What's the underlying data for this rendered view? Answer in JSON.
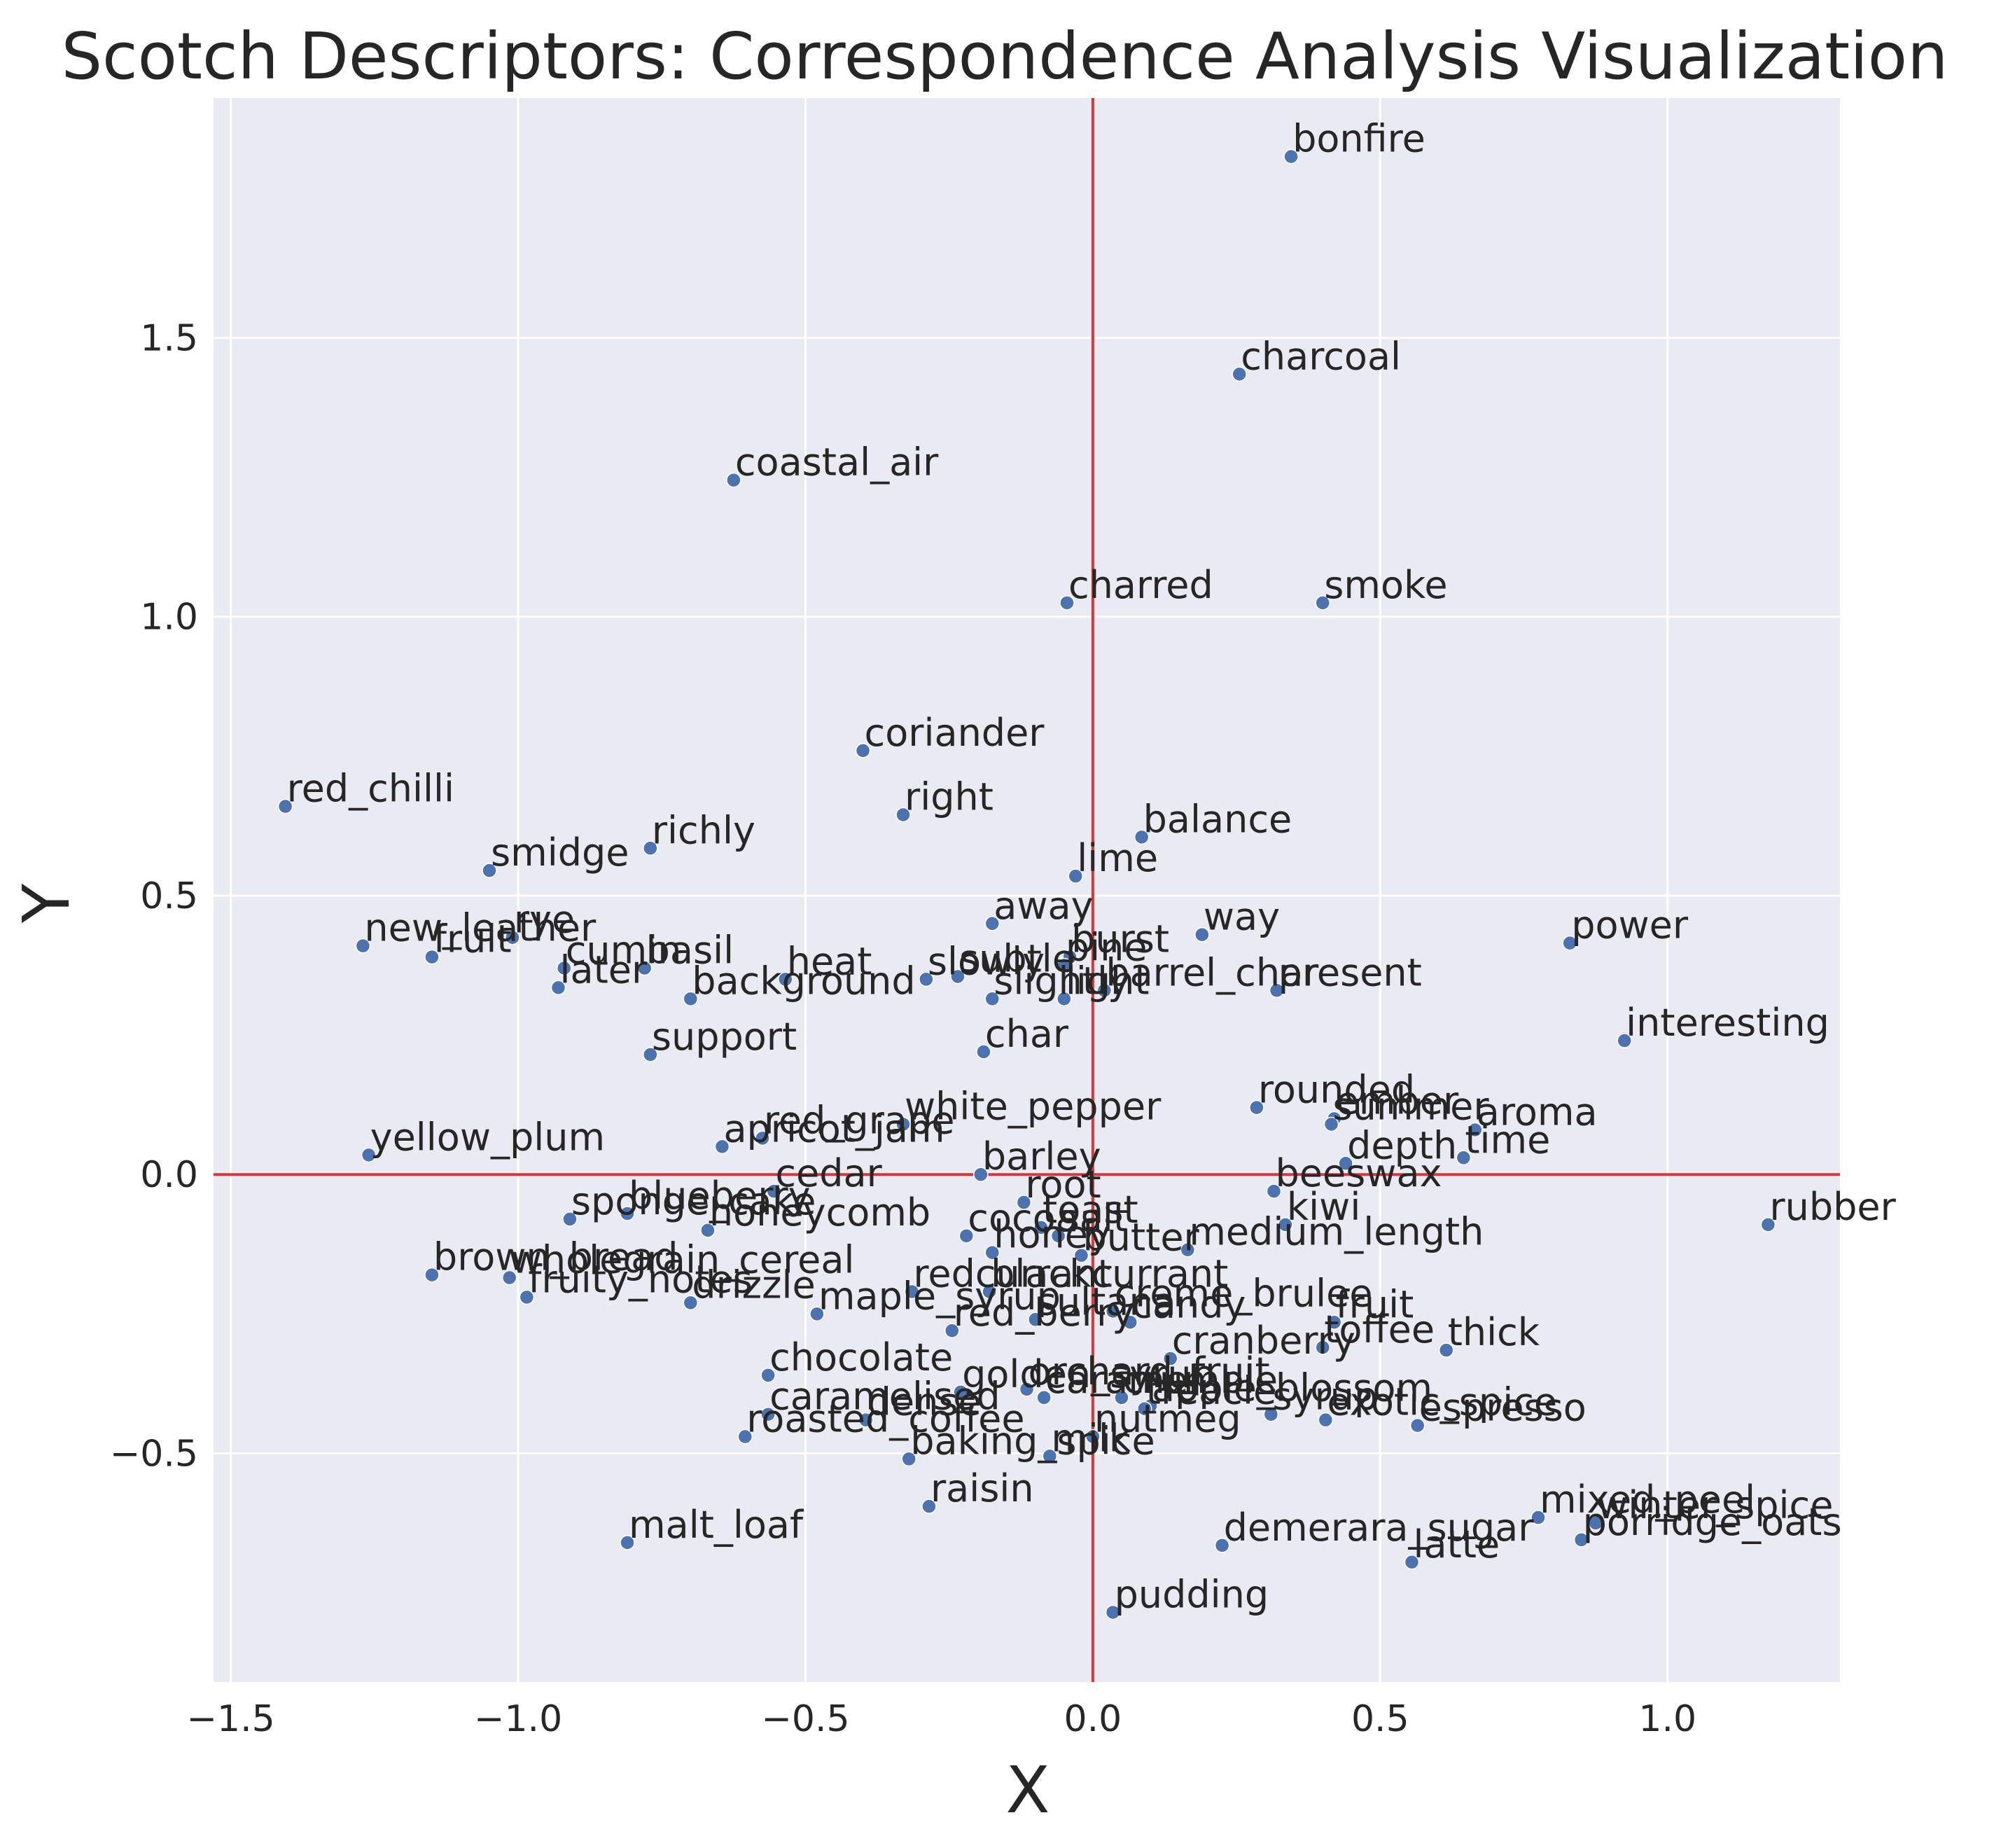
{
  "chart_data": {
    "type": "scatter",
    "title": "Scotch Descriptors: Correspondence Analysis Visualization",
    "xlabel": "X",
    "ylabel": "Y",
    "xlim": [
      -1.53,
      1.3
    ],
    "ylim": [
      -0.91,
      1.93
    ],
    "xticks": [
      -1.5,
      -1.0,
      -0.5,
      0.0,
      0.5,
      1.0
    ],
    "yticks": [
      -0.5,
      0.0,
      0.5,
      1.0,
      1.5
    ],
    "xtick_labels": [
      "−1.5",
      "−1.0",
      "−0.5",
      "0.0",
      "0.5",
      "1.0"
    ],
    "ytick_labels": [
      "−0.5",
      "0.0",
      "0.5",
      "1.0",
      "1.5"
    ],
    "grid": true,
    "reference_lines": {
      "x": 0,
      "y": 0,
      "color": "#d9383a"
    },
    "colors": {
      "background": "#eaeaf2",
      "grid": "#ffffff",
      "point": "#4c72b0",
      "reference": "#d9383a"
    },
    "points": [
      {
        "label": "bonfire",
        "x": 0.345,
        "y": 1.825
      },
      {
        "label": "charcoal",
        "x": 0.255,
        "y": 1.435
      },
      {
        "label": "coastal_air",
        "x": -0.625,
        "y": 1.245
      },
      {
        "label": "charred",
        "x": -0.045,
        "y": 1.025
      },
      {
        "label": "smoke",
        "x": 0.4,
        "y": 1.025
      },
      {
        "label": "coriander",
        "x": -0.4,
        "y": 0.76
      },
      {
        "label": "red_chilli",
        "x": -1.405,
        "y": 0.66
      },
      {
        "label": "right",
        "x": -0.33,
        "y": 0.645
      },
      {
        "label": "balance",
        "x": 0.085,
        "y": 0.605
      },
      {
        "label": "richly",
        "x": -0.77,
        "y": 0.585
      },
      {
        "label": "smidge",
        "x": -1.05,
        "y": 0.545
      },
      {
        "label": "lime",
        "x": -0.03,
        "y": 0.535
      },
      {
        "label": "away",
        "x": -0.175,
        "y": 0.45
      },
      {
        "label": "way",
        "x": 0.19,
        "y": 0.43
      },
      {
        "label": "power",
        "x": 0.83,
        "y": 0.415
      },
      {
        "label": "new_leather",
        "x": -1.27,
        "y": 0.41
      },
      {
        "label": "rye",
        "x": -1.01,
        "y": 0.425
      },
      {
        "label": "burst",
        "x": -0.04,
        "y": 0.39
      },
      {
        "label": "fruit",
        "x": -1.15,
        "y": 0.39
      },
      {
        "label": "cumin",
        "x": -0.92,
        "y": 0.37
      },
      {
        "label": "basil",
        "x": -0.78,
        "y": 0.37
      },
      {
        "label": "pine",
        "x": -0.05,
        "y": 0.375
      },
      {
        "label": "heat",
        "x": -0.535,
        "y": 0.35
      },
      {
        "label": "slowly",
        "x": -0.29,
        "y": 0.35
      },
      {
        "label": "subtle",
        "x": -0.235,
        "y": 0.355
      },
      {
        "label": "later",
        "x": -0.93,
        "y": 0.335
      },
      {
        "label": "slightly",
        "x": -0.175,
        "y": 0.315
      },
      {
        "label": "light",
        "x": -0.05,
        "y": 0.315
      },
      {
        "label": "background",
        "x": -0.7,
        "y": 0.315
      },
      {
        "label": "barrel_char",
        "x": 0.02,
        "y": 0.33
      },
      {
        "label": "present",
        "x": 0.32,
        "y": 0.33
      },
      {
        "label": "interesting",
        "x": 0.925,
        "y": 0.24
      },
      {
        "label": "support",
        "x": -0.77,
        "y": 0.215
      },
      {
        "label": "char",
        "x": -0.19,
        "y": 0.22
      },
      {
        "label": "rounded",
        "x": 0.285,
        "y": 0.12
      },
      {
        "label": "ember",
        "x": 0.42,
        "y": 0.1
      },
      {
        "label": "summer",
        "x": 0.415,
        "y": 0.09
      },
      {
        "label": "aroma",
        "x": 0.665,
        "y": 0.08
      },
      {
        "label": "time",
        "x": 0.645,
        "y": 0.03
      },
      {
        "label": "depth",
        "x": 0.44,
        "y": 0.02
      },
      {
        "label": "white_pepper",
        "x": -0.33,
        "y": 0.09
      },
      {
        "label": "red_grape",
        "x": -0.575,
        "y": 0.065
      },
      {
        "label": "apricot_jam",
        "x": -0.645,
        "y": 0.05
      },
      {
        "label": "yellow_plum",
        "x": -1.26,
        "y": 0.035
      },
      {
        "label": "barley",
        "x": -0.195,
        "y": 0.0
      },
      {
        "label": "cedar",
        "x": -0.555,
        "y": -0.03
      },
      {
        "label": "beeswax",
        "x": 0.315,
        "y": -0.03
      },
      {
        "label": "root",
        "x": -0.12,
        "y": -0.05
      },
      {
        "label": "sponge_cake",
        "x": -0.91,
        "y": -0.08
      },
      {
        "label": "blueberry",
        "x": -0.81,
        "y": -0.07
      },
      {
        "label": "honeycomb",
        "x": -0.67,
        "y": -0.1
      },
      {
        "label": "toast",
        "x": -0.09,
        "y": -0.095
      },
      {
        "label": "kiwi",
        "x": 0.335,
        "y": -0.09
      },
      {
        "label": "cocoa",
        "x": -0.22,
        "y": -0.11
      },
      {
        "label": "salt",
        "x": -0.06,
        "y": -0.11
      },
      {
        "label": "honey",
        "x": -0.175,
        "y": -0.14
      },
      {
        "label": "butter",
        "x": -0.02,
        "y": -0.145
      },
      {
        "label": "medium_length",
        "x": 0.165,
        "y": -0.135
      },
      {
        "label": "brown_bread",
        "x": -1.15,
        "y": -0.18
      },
      {
        "label": "wholegrain_cereal",
        "x": -1.015,
        "y": -0.185
      },
      {
        "label": "fruity_notes",
        "x": -0.985,
        "y": -0.22
      },
      {
        "label": "drizzle",
        "x": -0.7,
        "y": -0.23
      },
      {
        "label": "redcurrant",
        "x": -0.315,
        "y": -0.21
      },
      {
        "label": "blackcurrant",
        "x": -0.18,
        "y": -0.21
      },
      {
        "label": "maple_syrup",
        "x": -0.48,
        "y": -0.25
      },
      {
        "label": "sultana",
        "x": -0.1,
        "y": -0.26
      },
      {
        "label": "creme_brulee",
        "x": 0.035,
        "y": -0.245
      },
      {
        "label": "candy",
        "x": 0.065,
        "y": -0.265
      },
      {
        "label": "red_berry",
        "x": -0.245,
        "y": -0.28
      },
      {
        "label": "fruit",
        "x": 0.42,
        "y": -0.265
      },
      {
        "label": "toffee",
        "x": 0.4,
        "y": -0.31
      },
      {
        "label": "thick",
        "x": 0.615,
        "y": -0.315
      },
      {
        "label": "cranberry",
        "x": 0.135,
        "y": -0.33
      },
      {
        "label": "chocolate",
        "x": -0.565,
        "y": -0.36
      },
      {
        "label": "golden_syrup",
        "x": -0.23,
        "y": -0.39
      },
      {
        "label": "orchard_fruit",
        "x": -0.115,
        "y": -0.385
      },
      {
        "label": "caramel",
        "x": -0.085,
        "y": -0.4
      },
      {
        "label": "crumble",
        "x": 0.05,
        "y": -0.4
      },
      {
        "label": "apple_blossom",
        "x": 0.1,
        "y": -0.415
      },
      {
        "label": "treacle",
        "x": 0.09,
        "y": -0.42
      },
      {
        "label": "syrup",
        "x": 0.31,
        "y": -0.43
      },
      {
        "label": "exotic_spice",
        "x": 0.405,
        "y": -0.44
      },
      {
        "label": "espresso",
        "x": 0.565,
        "y": -0.45
      },
      {
        "label": "caramelised",
        "x": -0.565,
        "y": -0.43
      },
      {
        "label": "dense",
        "x": -0.395,
        "y": -0.44
      },
      {
        "label": "roasted_coffee",
        "x": -0.605,
        "y": -0.47
      },
      {
        "label": "nutmeg",
        "x": 0.0,
        "y": -0.47
      },
      {
        "label": "baking_spice",
        "x": -0.32,
        "y": -0.51
      },
      {
        "label": "milk",
        "x": -0.075,
        "y": -0.505
      },
      {
        "label": "raisin",
        "x": -0.285,
        "y": -0.595
      },
      {
        "label": "mixed_peel",
        "x": 0.775,
        "y": -0.615
      },
      {
        "label": "winter_spice",
        "x": 0.875,
        "y": -0.625
      },
      {
        "label": "porridge_oats",
        "x": 0.85,
        "y": -0.655
      },
      {
        "label": "malt_loaf",
        "x": -0.81,
        "y": -0.66
      },
      {
        "label": "demerara_sugar",
        "x": 0.225,
        "y": -0.665
      },
      {
        "label": "latte",
        "x": 0.555,
        "y": -0.695
      },
      {
        "label": "rubber",
        "x": 1.175,
        "y": -0.09
      },
      {
        "label": "pudding",
        "x": 0.035,
        "y": -0.785
      }
    ]
  }
}
